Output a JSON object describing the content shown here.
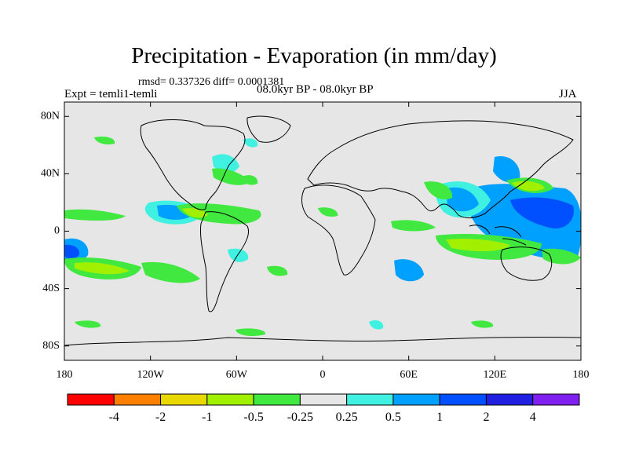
{
  "header": {
    "title": "Precipitation - Evaporation (in mm/day)",
    "stats": "rmsd= 0.337326 diff= 0.0001381",
    "experiment": "Expt = temli1-temli",
    "period": "08.0kyr BP - 08.0kyr BP",
    "season": "JJA"
  },
  "axes": {
    "lat_labels": [
      "80N",
      "40N",
      "0",
      "40S",
      "80S"
    ],
    "lat_values": [
      80,
      40,
      0,
      -40,
      -80
    ],
    "lon_labels": [
      "180",
      "120W",
      "60W",
      "0",
      "60E",
      "120E",
      "180"
    ],
    "lon_values": [
      -180,
      -120,
      -60,
      0,
      60,
      120,
      180
    ]
  },
  "colorbar": {
    "colors": [
      "#ff0000",
      "#ff8000",
      "#e8d800",
      "#a0f000",
      "#40e840",
      "#e6e6e6",
      "#40f0e0",
      "#00a0ff",
      "#0050ff",
      "#2020e0",
      "#8020f0"
    ],
    "labels": [
      "-4",
      "-2",
      "-1",
      "-0.5",
      "-0.25",
      "0.25",
      "0.5",
      "1",
      "2",
      "4"
    ]
  },
  "colors": {
    "ocean_background": "#e6e6e6",
    "coastline": "#000000"
  }
}
